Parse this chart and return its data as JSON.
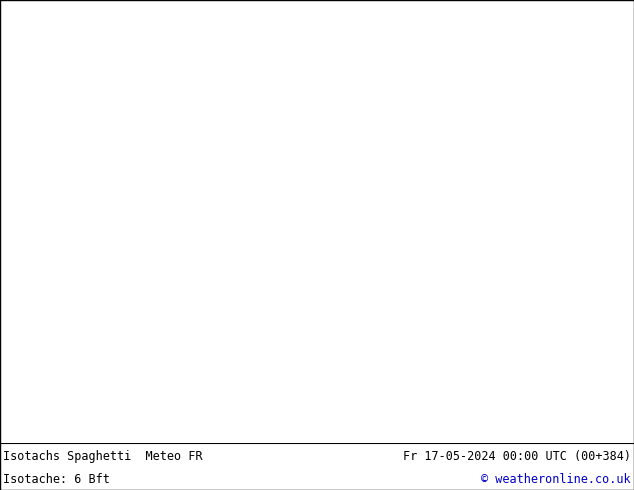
{
  "title_left": "Isotachs Spaghetti  Meteo FR",
  "title_right": "Fr 17-05-2024 00:00 UTC (00+384)",
  "subtitle_left": "Isotache: 6 Bft",
  "subtitle_right": "© weatheronline.co.uk",
  "bg_color": "#ffffff",
  "ocean_color": "#d8d8d8",
  "land_color": "#c8edb0",
  "land_gray_color": "#c0c0c0",
  "footer_bg": "#ffffff",
  "title_fontsize": 8.5,
  "subtitle_fontsize": 8.5,
  "copyright_color": "#0000cc",
  "title_color": "#000000",
  "border_color": "#000000",
  "extent": [
    -175,
    -45,
    10,
    80
  ],
  "figsize": [
    6.34,
    4.9
  ],
  "dpi": 100
}
